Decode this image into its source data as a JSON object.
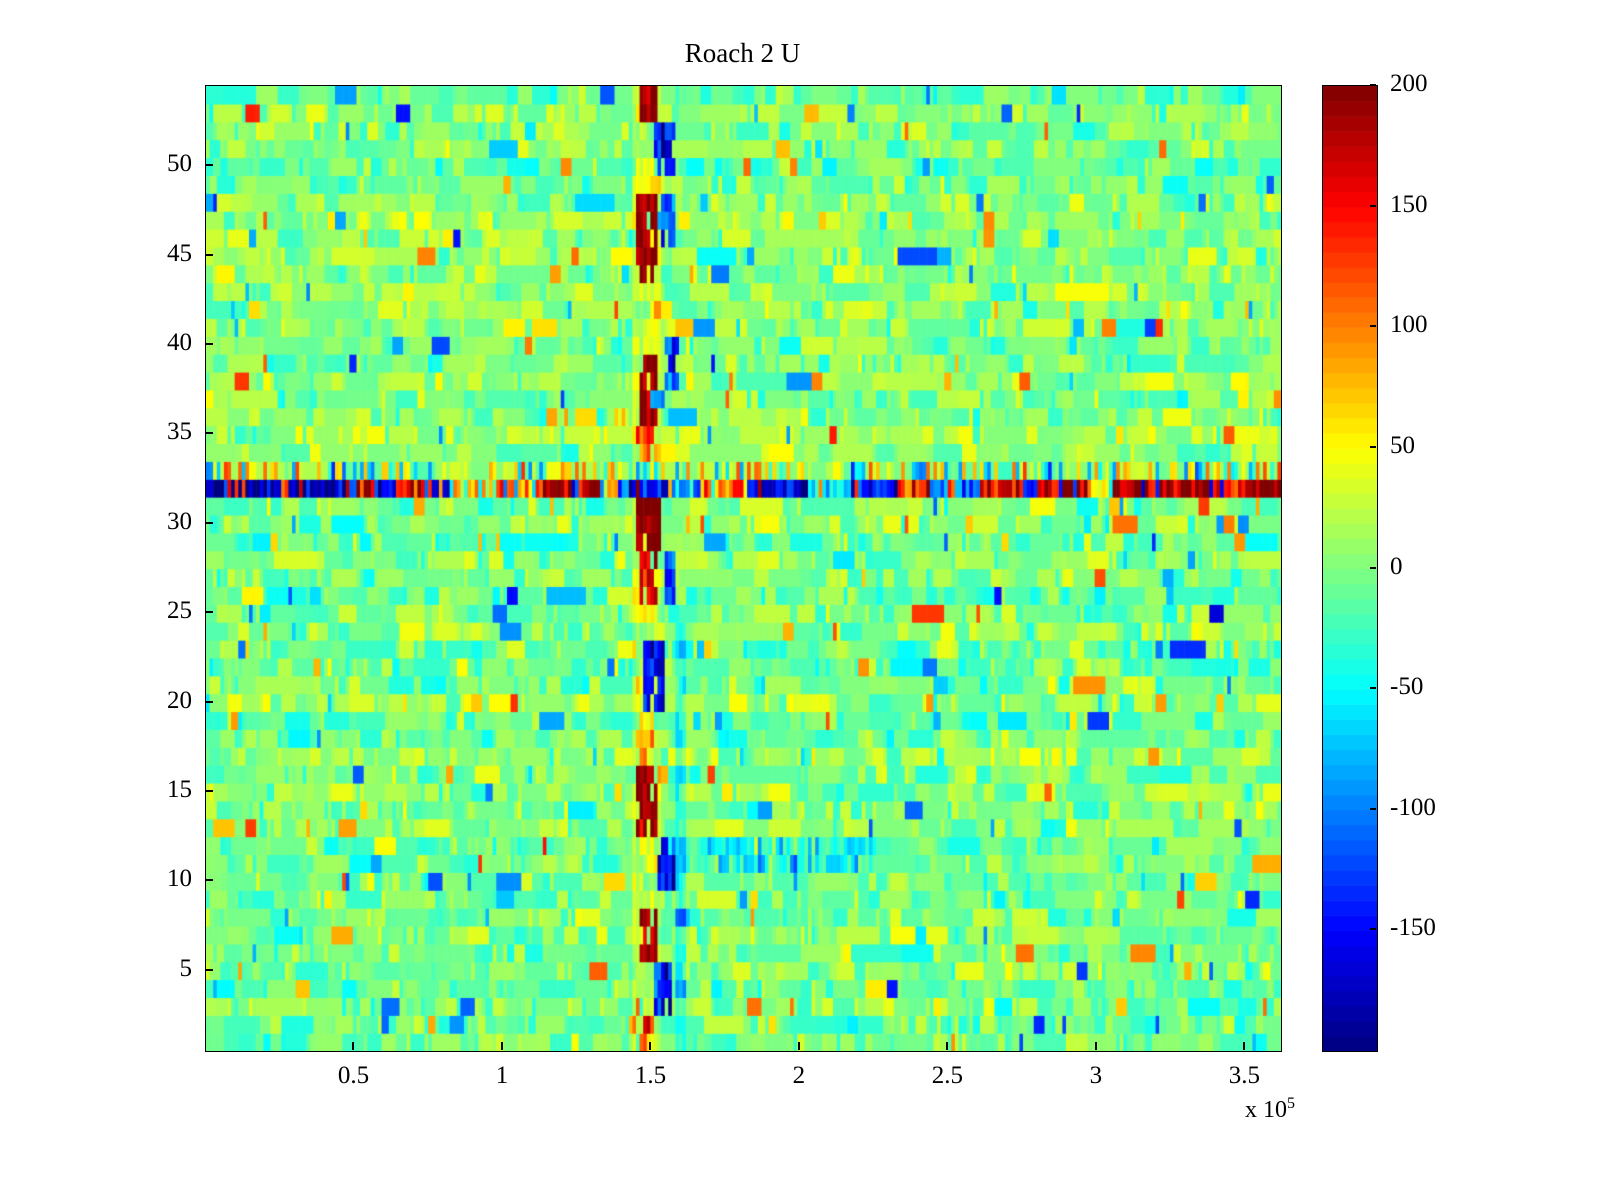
{
  "chart_data": {
    "type": "heatmap",
    "title": "Roach 2 U",
    "colormap": "jet",
    "clim": [
      -200,
      200
    ],
    "x_axis": {
      "range": [
        0,
        362000
      ],
      "ticks": [
        {
          "v": 50000,
          "label": "0.5"
        },
        {
          "v": 100000,
          "label": "1"
        },
        {
          "v": 150000,
          "label": "1.5"
        },
        {
          "v": 200000,
          "label": "2"
        },
        {
          "v": 250000,
          "label": "2.5"
        },
        {
          "v": 300000,
          "label": "3"
        },
        {
          "v": 350000,
          "label": "3.5"
        }
      ],
      "multiplier_prefix": "x 10",
      "multiplier_exponent": "5"
    },
    "y_axis": {
      "range": [
        0.5,
        54.5
      ],
      "ticks": [
        5,
        10,
        15,
        20,
        25,
        30,
        35,
        40,
        45,
        50
      ]
    },
    "colorbar": {
      "ticks": [
        200,
        150,
        100,
        50,
        0,
        -50,
        -100,
        -150
      ],
      "steps": 64
    },
    "grid": {
      "rows": 54,
      "cols": 300,
      "seed": 1337,
      "base_sigma": 20,
      "row_bias_sigma": 7,
      "run_prob": 0.38,
      "spike_prob": 0.06,
      "spike_min": 45,
      "spike_max": 120
    },
    "features": {
      "horizontal_stripe": {
        "row": 32,
        "flip_prob": 0.12,
        "segments": [
          [
            0.0,
            0.13,
            -185
          ],
          [
            0.13,
            0.158,
            160
          ],
          [
            0.158,
            0.178,
            -165
          ],
          [
            0.178,
            0.205,
            140
          ],
          [
            0.205,
            0.23,
            -145
          ],
          [
            0.23,
            0.27,
            60
          ],
          [
            0.27,
            0.31,
            120
          ],
          [
            0.31,
            0.368,
            185
          ],
          [
            0.368,
            0.395,
            -120
          ],
          [
            0.395,
            0.43,
            -185
          ],
          [
            0.43,
            0.465,
            -90
          ],
          [
            0.465,
            0.505,
            110
          ],
          [
            0.505,
            0.56,
            -160
          ],
          [
            0.56,
            0.6,
            -60
          ],
          [
            0.6,
            0.645,
            -150
          ],
          [
            0.645,
            0.675,
            130
          ],
          [
            0.675,
            0.72,
            -110
          ],
          [
            0.72,
            0.76,
            165
          ],
          [
            0.76,
            0.775,
            -130
          ],
          [
            0.775,
            0.82,
            185
          ],
          [
            0.82,
            0.843,
            40
          ],
          [
            0.843,
            1.0,
            195
          ]
        ]
      },
      "secondary_stripe": {
        "row": 33,
        "prob": 0.5,
        "amp": 90
      },
      "blobs": [
        [
          53,
          54,
          0.402,
          0.42,
          165,
          "set"
        ],
        [
          50,
          52,
          0.418,
          0.436,
          -160,
          "set"
        ],
        [
          44,
          48,
          0.4,
          0.42,
          175,
          "set"
        ],
        [
          46,
          48,
          0.424,
          0.438,
          -110,
          "set"
        ],
        [
          36,
          39,
          0.402,
          0.42,
          165,
          "set"
        ],
        [
          38,
          40,
          0.426,
          0.44,
          -120,
          "set"
        ],
        [
          34,
          35,
          0.404,
          0.418,
          90,
          "set"
        ],
        [
          29,
          31,
          0.4,
          0.422,
          180,
          "set"
        ],
        [
          26,
          28,
          0.404,
          0.42,
          145,
          "set"
        ],
        [
          26,
          28,
          0.426,
          0.438,
          -125,
          "set"
        ],
        [
          20,
          23,
          0.406,
          0.428,
          -175,
          "set"
        ],
        [
          17,
          19,
          0.404,
          0.418,
          65,
          "set"
        ],
        [
          13,
          16,
          0.4,
          0.42,
          180,
          "set"
        ],
        [
          11,
          12,
          0.44,
          0.62,
          -45,
          "set"
        ],
        [
          10,
          12,
          0.42,
          0.436,
          -155,
          "set"
        ],
        [
          6,
          8,
          0.402,
          0.42,
          160,
          "set"
        ],
        [
          3,
          5,
          0.416,
          0.432,
          -165,
          "set"
        ],
        [
          1,
          2,
          0.402,
          0.416,
          85,
          "set"
        ],
        [
          1,
          54,
          0.398,
          0.424,
          28,
          "add"
        ],
        [
          1,
          24,
          0.436,
          0.448,
          -35,
          "add"
        ]
      ]
    },
    "colors": {
      "background": "#ffffff",
      "axis": "#000000"
    }
  }
}
